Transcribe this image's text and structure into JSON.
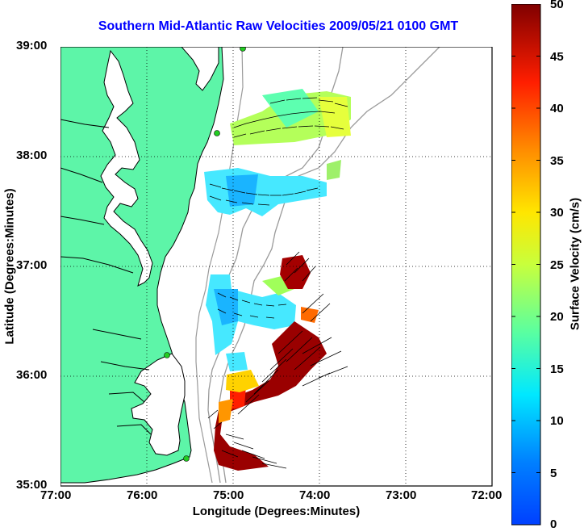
{
  "title": "Southern Mid-Atlantic Raw Velocities 2009/05/21 0100 GMT",
  "xaxis": {
    "label": "Longitude (Degrees:Minutes)",
    "ticks": [
      "77:00",
      "76:00",
      "75:00",
      "74:00",
      "73:00",
      "72:00"
    ]
  },
  "yaxis": {
    "label": "Latitude (Degrees:Minutes)",
    "ticks": [
      "39:00",
      "38:00",
      "37:00",
      "36:00",
      "35:00"
    ]
  },
  "colorbar": {
    "label": "Surface Velocity (cm/s)",
    "ticks": [
      "50",
      "45",
      "40",
      "35",
      "30",
      "25",
      "20",
      "15",
      "10",
      "5",
      "0"
    ],
    "range": [
      0,
      50
    ]
  },
  "map_extent": {
    "lon": [
      -77,
      -72
    ],
    "lat": [
      35,
      39
    ]
  },
  "colors": {
    "land": "#5df5a8",
    "title": "#0000ff",
    "coast": "#000000",
    "bathymetry": "#9a9a9a",
    "stations": "#22cc22"
  }
}
